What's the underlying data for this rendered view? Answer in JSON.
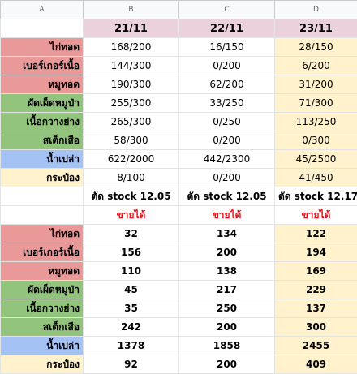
{
  "colheads": [
    "A",
    "B",
    "C",
    "D"
  ],
  "dates": [
    "21/11",
    "22/11",
    "23/11"
  ],
  "section1": [
    {
      "label": "ไก่ทอด",
      "values": [
        "168/200",
        "16/150",
        "28/150"
      ],
      "color": "#ea9999"
    },
    {
      "label": "เบอร์เกอร์เนื้อ",
      "values": [
        "144/300",
        "0/200",
        "6/200"
      ],
      "color": "#ea9999"
    },
    {
      "label": "หมูทอด",
      "values": [
        "190/300",
        "62/200",
        "31/200"
      ],
      "color": "#ea9999"
    },
    {
      "label": "ผัดเผ็ดหมูป่า",
      "values": [
        "255/300",
        "33/250",
        "71/300"
      ],
      "color": "#93c47d"
    },
    {
      "label": "เนื้อกวางย่าง",
      "values": [
        "265/300",
        "0/250",
        "113/250"
      ],
      "color": "#93c47d"
    },
    {
      "label": "สเต็กเสือ",
      "values": [
        "58/300",
        "0/200",
        "0/300"
      ],
      "color": "#93c47d"
    },
    {
      "label": "น้ำเปล่า",
      "values": [
        "622/2000",
        "442/2300",
        "45/2500"
      ],
      "color": "#a4c2f4"
    },
    {
      "label": "กระป๋อง",
      "values": [
        "8/100",
        "0/200",
        "41/450"
      ],
      "color": "#fff2cc"
    }
  ],
  "stock_cut": [
    "ตัด stock 12.05",
    "ตัด stock 12.05",
    "ตัด stock 12.17"
  ],
  "sold": [
    "ขายได้",
    "ขายได้",
    "ขายได้"
  ],
  "section2": [
    {
      "label": "ไก่ทอด",
      "values": [
        "32",
        "134",
        "122"
      ],
      "color": "#ea9999"
    },
    {
      "label": "เบอร์เกอร์เนื้อ",
      "values": [
        "156",
        "200",
        "194"
      ],
      "color": "#ea9999"
    },
    {
      "label": "หมูทอด",
      "values": [
        "110",
        "138",
        "169"
      ],
      "color": "#ea9999"
    },
    {
      "label": "ผัดเผ็ดหมูป่า",
      "values": [
        "45",
        "217",
        "229"
      ],
      "color": "#93c47d"
    },
    {
      "label": "เนื้อกวางย่าง",
      "values": [
        "35",
        "250",
        "137"
      ],
      "color": "#93c47d"
    },
    {
      "label": "สเต็กเสือ",
      "values": [
        "242",
        "200",
        "300"
      ],
      "color": "#93c47d"
    },
    {
      "label": "น้ำเปล่า",
      "values": [
        "1378",
        "1858",
        "2455"
      ],
      "color": "#a4c2f4"
    },
    {
      "label": "กระป๋อง",
      "values": [
        "92",
        "200",
        "409"
      ],
      "color": "#fff2cc"
    }
  ]
}
